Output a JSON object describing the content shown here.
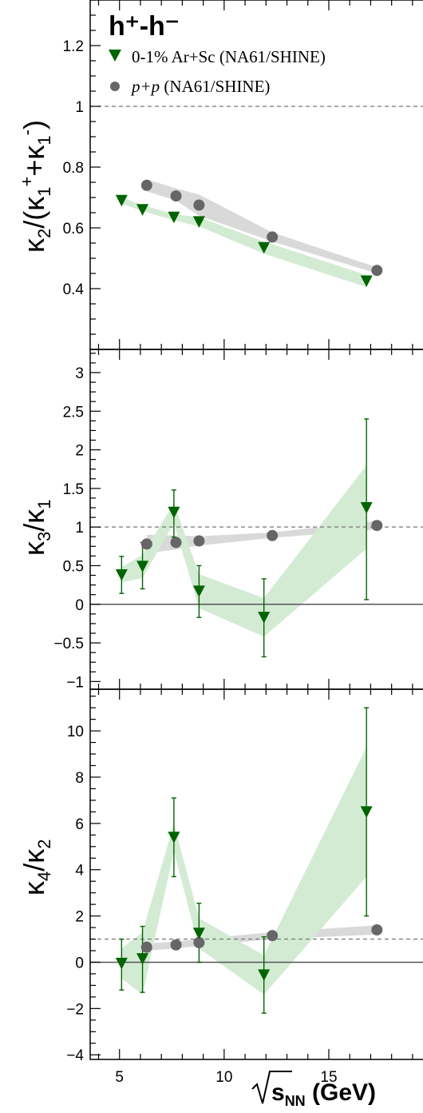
{
  "title": "h⁺-h⁻",
  "legend": [
    {
      "label": "0-1% Ar+Sc (NA61/SHINE)",
      "color": "#006400",
      "marker": "triangle-down"
    },
    {
      "label": "p+p (NA61/SHINE)",
      "color": "#666666",
      "marker": "circle"
    }
  ],
  "xlabel": "√s_NN (GeV)",
  "colors": {
    "arsc": "#006400",
    "arsc_band": "#d3ebd3",
    "pp": "#666666",
    "pp_band": "#d9d9d9"
  },
  "chart_data": [
    {
      "type": "scatter",
      "ylabel": "κ₂/(κ₁⁺+κ₁⁻)",
      "xlim": [
        3.6,
        19.5
      ],
      "ylim": [
        0.2,
        1.35
      ],
      "yticks": [
        0.4,
        0.6,
        0.8,
        1,
        1.2
      ],
      "ytick_labels": [
        "0.4",
        "0.6",
        "0.8",
        "1",
        "1.2"
      ],
      "reference_lines": [
        1
      ],
      "series": [
        {
          "name": "0-1% Ar+Sc (NA61/SHINE)",
          "x": [
            5.1,
            6.1,
            7.6,
            8.8,
            11.9,
            16.8
          ],
          "y": [
            0.69,
            0.66,
            0.635,
            0.62,
            0.535,
            0.425
          ],
          "band_low": [
            0.68,
            0.655,
            0.625,
            0.605,
            0.515,
            0.405
          ],
          "band_high": [
            0.7,
            0.675,
            0.645,
            0.635,
            0.555,
            0.445
          ]
        },
        {
          "name": "p+p (NA61/SHINE)",
          "x": [
            6.3,
            7.7,
            8.8,
            12.3,
            17.3
          ],
          "y": [
            0.74,
            0.705,
            0.675,
            0.57,
            0.46
          ],
          "band_low": [
            0.72,
            0.69,
            0.64,
            0.555,
            0.45
          ],
          "band_high": [
            0.76,
            0.73,
            0.71,
            0.585,
            0.47
          ]
        }
      ]
    },
    {
      "type": "scatter",
      "ylabel": "κ₃/κ₁",
      "xlim": [
        3.6,
        19.5
      ],
      "ylim": [
        -1.1,
        3.3
      ],
      "yticks": [
        -1,
        -0.5,
        0,
        0.5,
        1,
        1.5,
        2,
        2.5,
        3
      ],
      "ytick_labels": [
        "−1",
        "−0.5",
        "0",
        "0.5",
        "1",
        "1.5",
        "2",
        "2.5",
        "3"
      ],
      "reference_lines": [
        1,
        0
      ],
      "series": [
        {
          "name": "0-1% Ar+Sc (NA61/SHINE)",
          "x": [
            5.1,
            6.1,
            7.6,
            8.8,
            11.9,
            16.8
          ],
          "y": [
            0.38,
            0.49,
            1.19,
            0.17,
            -0.17,
            1.25
          ],
          "err_low": [
            0.14,
            0.2,
            0.87,
            -0.17,
            -0.68,
            0.06
          ],
          "err_high": [
            0.62,
            0.8,
            1.48,
            0.5,
            0.33,
            2.4
          ],
          "band_low": [
            0.28,
            0.34,
            1.05,
            -0.05,
            -0.42,
            0.72
          ],
          "band_high": [
            0.48,
            0.64,
            1.31,
            0.39,
            0.08,
            1.8
          ]
        },
        {
          "name": "p+p (NA61/SHINE)",
          "x": [
            6.3,
            7.7,
            8.8,
            12.3,
            17.3
          ],
          "y": [
            0.78,
            0.8,
            0.82,
            0.89,
            1.02
          ],
          "band_low": [
            0.66,
            0.71,
            0.76,
            0.86,
            0.97
          ],
          "band_high": [
            0.9,
            0.89,
            0.88,
            0.93,
            1.08
          ]
        }
      ]
    },
    {
      "type": "scatter",
      "ylabel": "κ₄/κ₂",
      "xlim": [
        3.6,
        19.5
      ],
      "ylim": [
        -4.2,
        11.8
      ],
      "yticks": [
        -4,
        -2,
        0,
        2,
        4,
        6,
        8,
        10
      ],
      "ytick_labels": [
        "−4",
        "−2",
        "0",
        "2",
        "4",
        "6",
        "8",
        "10"
      ],
      "reference_lines": [
        1,
        0
      ],
      "series": [
        {
          "name": "0-1% Ar+Sc (NA61/SHINE)",
          "x": [
            5.1,
            6.1,
            7.6,
            8.8,
            11.9,
            16.8
          ],
          "y": [
            -0.05,
            0.15,
            5.4,
            1.25,
            -0.55,
            6.5
          ],
          "err_low": [
            -1.2,
            -1.3,
            3.7,
            0.0,
            -2.2,
            2.0
          ],
          "err_high": [
            1.0,
            1.55,
            7.1,
            2.55,
            1.1,
            11.0
          ],
          "band_low": [
            -0.7,
            -1.4,
            4.8,
            0.6,
            -1.4,
            3.7
          ],
          "band_high": [
            0.6,
            1.3,
            6.0,
            1.9,
            0.3,
            9.3
          ]
        },
        {
          "name": "p+p (NA61/SHINE)",
          "x": [
            6.3,
            7.7,
            8.8,
            12.3,
            17.3
          ],
          "y": [
            0.65,
            0.75,
            0.85,
            1.15,
            1.4
          ],
          "band_low": [
            0.5,
            0.6,
            0.7,
            1.0,
            1.2
          ],
          "band_high": [
            0.8,
            0.9,
            1.0,
            1.3,
            1.6
          ]
        }
      ]
    }
  ],
  "xticks": [
    5,
    10,
    15
  ],
  "xtick_labels": [
    "5",
    "10",
    "15"
  ]
}
